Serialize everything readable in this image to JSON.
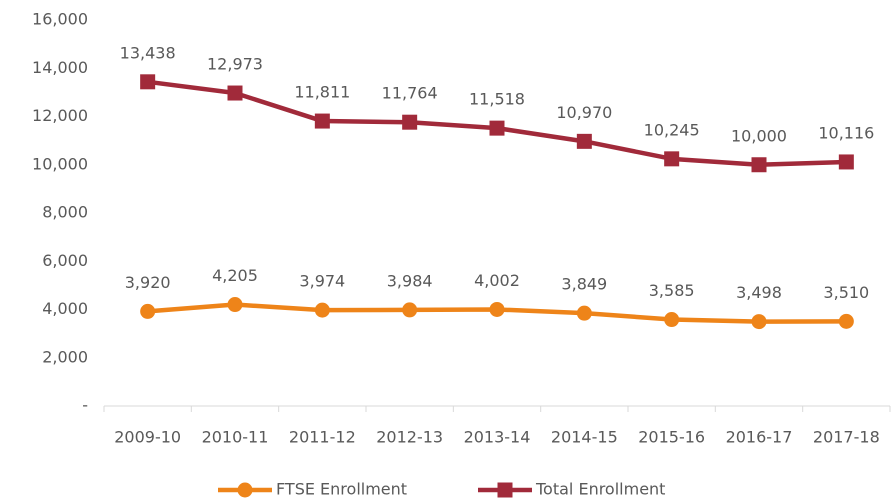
{
  "chart_data": {
    "type": "line",
    "categories": [
      "2009-10",
      "2010-11",
      "2011-12",
      "2012-13",
      "2013-14",
      "2014-15",
      "2015-16",
      "2016-17",
      "2017-18"
    ],
    "series": [
      {
        "name": "FTSE Enrollment",
        "color": "#ee8419",
        "marker": "circle",
        "values": [
          3920,
          4205,
          3974,
          3984,
          4002,
          3849,
          3585,
          3498,
          3510
        ],
        "value_labels": [
          "3,920",
          "4,205",
          "3,974",
          "3,984",
          "4,002",
          "3,849",
          "3,585",
          "3,498",
          "3,510"
        ]
      },
      {
        "name": "Total Enrollment",
        "color": "#a12a3a",
        "marker": "square",
        "values": [
          13438,
          12973,
          11811,
          11764,
          11518,
          10970,
          10245,
          10000,
          10116
        ],
        "value_labels": [
          "13,438",
          "12,973",
          "11,811",
          "11,764",
          "11,518",
          "10,970",
          "10,245",
          "10,000",
          "10,116"
        ]
      }
    ],
    "ylim": [
      0,
      16000
    ],
    "yticks": [
      {
        "value": 0,
        "label": "-"
      },
      {
        "value": 2000,
        "label": "2,000"
      },
      {
        "value": 4000,
        "label": "4,000"
      },
      {
        "value": 6000,
        "label": "6,000"
      },
      {
        "value": 8000,
        "label": "8,000"
      },
      {
        "value": 10000,
        "label": "10,000"
      },
      {
        "value": 12000,
        "label": "12,000"
      },
      {
        "value": 14000,
        "label": "14,000"
      },
      {
        "value": 16000,
        "label": "16,000"
      }
    ],
    "grid": false,
    "legend": "bottom"
  }
}
